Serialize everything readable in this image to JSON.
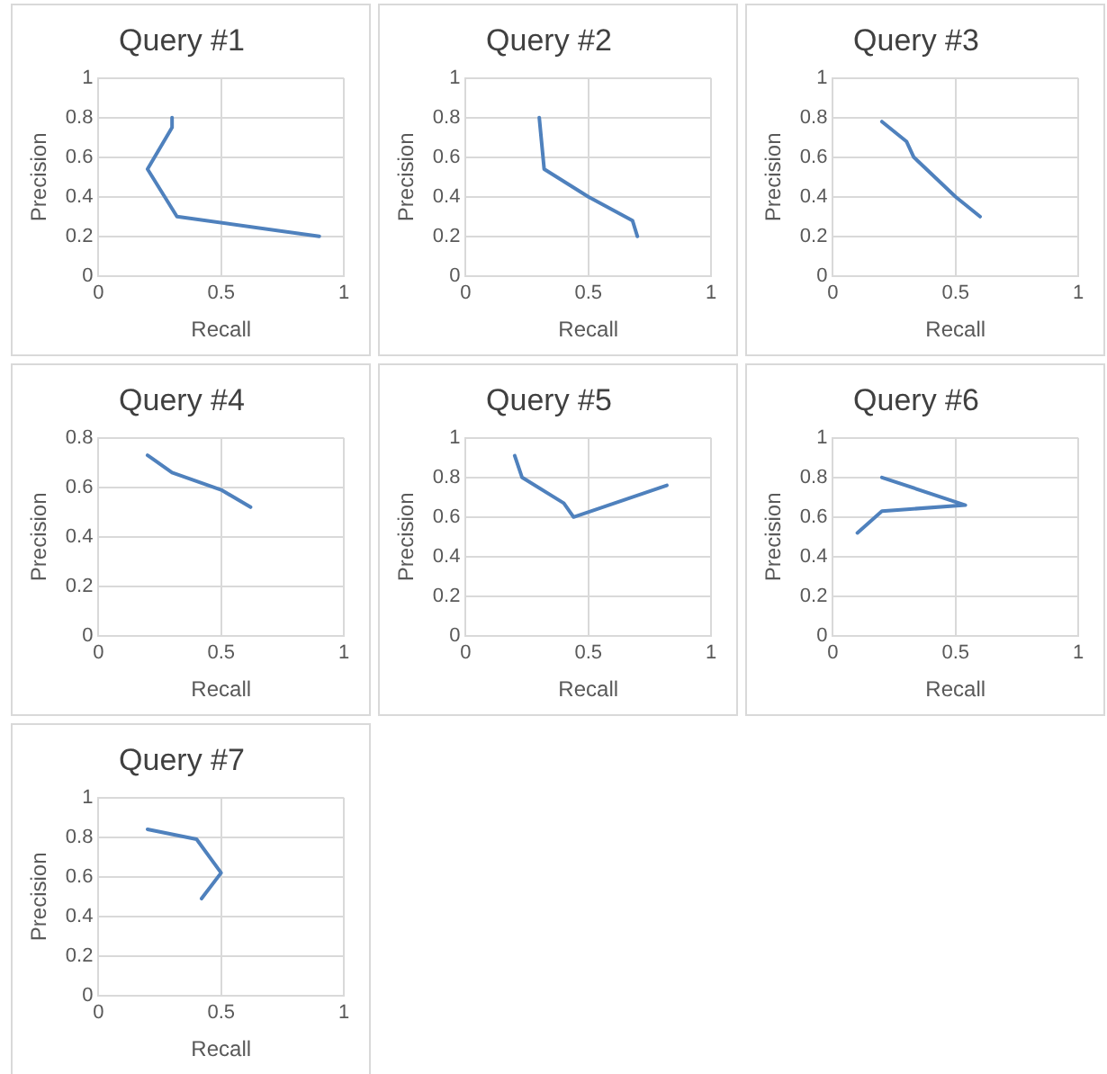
{
  "chart_data": [
    {
      "type": "line",
      "title": "Query #1",
      "xlabel": "Recall",
      "ylabel": "Precision",
      "xlim": [
        0,
        1
      ],
      "xticks": [
        0,
        0.5,
        1
      ],
      "ylim": [
        0,
        1
      ],
      "yticks": [
        0,
        0.2,
        0.4,
        0.6,
        0.8,
        1
      ],
      "grid": true,
      "legend": false,
      "marker": "none",
      "series": [
        {
          "color": "#4f81bd",
          "x": [
            0.3,
            0.3,
            0.2,
            0.32,
            0.9
          ],
          "values": [
            0.8,
            0.75,
            0.54,
            0.3,
            0.2
          ]
        }
      ]
    },
    {
      "type": "line",
      "title": "Query #2",
      "xlabel": "Recall",
      "ylabel": "Precision",
      "xlim": [
        0,
        1
      ],
      "xticks": [
        0,
        0.5,
        1
      ],
      "ylim": [
        0,
        1
      ],
      "yticks": [
        0,
        0.2,
        0.4,
        0.6,
        0.8,
        1
      ],
      "grid": true,
      "legend": false,
      "marker": "none",
      "series": [
        {
          "color": "#4f81bd",
          "x": [
            0.3,
            0.32,
            0.5,
            0.68,
            0.7
          ],
          "values": [
            0.8,
            0.54,
            0.4,
            0.28,
            0.2
          ]
        }
      ]
    },
    {
      "type": "line",
      "title": "Query #3",
      "xlabel": "Recall",
      "ylabel": "Precision",
      "xlim": [
        0,
        1
      ],
      "xticks": [
        0,
        0.5,
        1
      ],
      "ylim": [
        0,
        1
      ],
      "yticks": [
        0,
        0.2,
        0.4,
        0.6,
        0.8,
        1
      ],
      "grid": true,
      "legend": false,
      "marker": "none",
      "series": [
        {
          "color": "#4f81bd",
          "x": [
            0.2,
            0.3,
            0.33,
            0.5,
            0.6
          ],
          "values": [
            0.78,
            0.68,
            0.6,
            0.4,
            0.3
          ]
        }
      ]
    },
    {
      "type": "line",
      "title": "Query #4",
      "xlabel": "Recall",
      "ylabel": "Precision",
      "xlim": [
        0,
        1
      ],
      "xticks": [
        0,
        0.5,
        1
      ],
      "ylim": [
        0,
        0.8
      ],
      "yticks": [
        0,
        0.2,
        0.4,
        0.6,
        0.8
      ],
      "grid": true,
      "legend": false,
      "marker": "none",
      "series": [
        {
          "color": "#4f81bd",
          "x": [
            0.2,
            0.3,
            0.5,
            0.62
          ],
          "values": [
            0.73,
            0.66,
            0.59,
            0.52
          ]
        }
      ]
    },
    {
      "type": "line",
      "title": "Query #5",
      "xlabel": "Recall",
      "ylabel": "Precision",
      "xlim": [
        0,
        1
      ],
      "xticks": [
        0,
        0.5,
        1
      ],
      "ylim": [
        0,
        1
      ],
      "yticks": [
        0,
        0.2,
        0.4,
        0.6,
        0.8,
        1
      ],
      "grid": true,
      "legend": false,
      "marker": "none",
      "series": [
        {
          "color": "#4f81bd",
          "x": [
            0.2,
            0.23,
            0.4,
            0.44,
            0.82
          ],
          "values": [
            0.91,
            0.8,
            0.67,
            0.6,
            0.76
          ]
        }
      ]
    },
    {
      "type": "line",
      "title": "Query #6",
      "xlabel": "Recall",
      "ylabel": "Precision",
      "xlim": [
        0,
        1
      ],
      "xticks": [
        0,
        0.5,
        1
      ],
      "ylim": [
        0,
        1
      ],
      "yticks": [
        0,
        0.2,
        0.4,
        0.6,
        0.8,
        1
      ],
      "grid": true,
      "legend": false,
      "marker": "none",
      "series": [
        {
          "color": "#4f81bd",
          "x": [
            0.2,
            0.54,
            0.2,
            0.1
          ],
          "values": [
            0.8,
            0.66,
            0.63,
            0.52
          ]
        }
      ]
    },
    {
      "type": "line",
      "title": "Query #7",
      "xlabel": "Recall",
      "ylabel": "Precision",
      "xlim": [
        0,
        1
      ],
      "xticks": [
        0,
        0.5,
        1
      ],
      "ylim": [
        0,
        1
      ],
      "yticks": [
        0,
        0.2,
        0.4,
        0.6,
        0.8,
        1
      ],
      "grid": true,
      "legend": false,
      "marker": "none",
      "series": [
        {
          "color": "#4f81bd",
          "x": [
            0.2,
            0.4,
            0.5,
            0.42
          ],
          "values": [
            0.84,
            0.79,
            0.62,
            0.49
          ]
        }
      ]
    }
  ]
}
